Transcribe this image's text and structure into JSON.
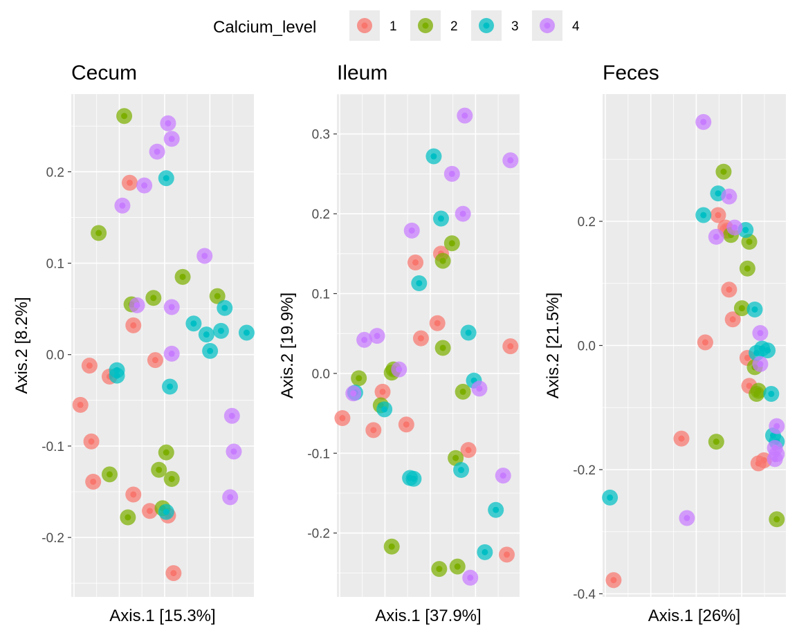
{
  "legend": {
    "title": "Calcium_level",
    "entries": [
      {
        "label": "1",
        "color": "#F8766D"
      },
      {
        "label": "2",
        "color": "#7CAE00"
      },
      {
        "label": "3",
        "color": "#00BFC4"
      },
      {
        "label": "4",
        "color": "#C77CFF"
      }
    ]
  },
  "chart_data": [
    {
      "type": "scatter",
      "title": "Cecum",
      "xlabel": "Axis.1   [15.3%]",
      "ylabel": "Axis.2   [8.2%]",
      "xlim": [
        0,
        1
      ],
      "ylim": [
        -0.265,
        0.285
      ],
      "yticks": [
        0.2,
        0.1,
        0.0,
        -0.1,
        -0.2
      ],
      "ytick_labels": [
        "0.2",
        "0.1",
        "0.0",
        "-0.1",
        "-0.2"
      ],
      "points": [
        {
          "x": 0.05,
          "y": -0.055,
          "g": 1
        },
        {
          "x": 0.1,
          "y": -0.012,
          "g": 1
        },
        {
          "x": 0.11,
          "y": -0.095,
          "g": 1
        },
        {
          "x": 0.12,
          "y": -0.139,
          "g": 1
        },
        {
          "x": 0.21,
          "y": -0.024,
          "g": 1
        },
        {
          "x": 0.32,
          "y": 0.188,
          "g": 1
        },
        {
          "x": 0.34,
          "y": 0.032,
          "g": 1
        },
        {
          "x": 0.34,
          "y": -0.153,
          "g": 1
        },
        {
          "x": 0.43,
          "y": -0.171,
          "g": 1
        },
        {
          "x": 0.46,
          "y": -0.006,
          "g": 1
        },
        {
          "x": 0.53,
          "y": -0.176,
          "g": 1
        },
        {
          "x": 0.56,
          "y": -0.239,
          "g": 1
        },
        {
          "x": 0.15,
          "y": 0.133,
          "g": 2
        },
        {
          "x": 0.21,
          "y": -0.131,
          "g": 2
        },
        {
          "x": 0.29,
          "y": 0.261,
          "g": 2
        },
        {
          "x": 0.31,
          "y": -0.178,
          "g": 2
        },
        {
          "x": 0.33,
          "y": 0.055,
          "g": 2
        },
        {
          "x": 0.45,
          "y": 0.062,
          "g": 2
        },
        {
          "x": 0.48,
          "y": -0.126,
          "g": 2
        },
        {
          "x": 0.5,
          "y": -0.168,
          "g": 2
        },
        {
          "x": 0.52,
          "y": -0.107,
          "g": 2
        },
        {
          "x": 0.55,
          "y": -0.136,
          "g": 2
        },
        {
          "x": 0.61,
          "y": 0.085,
          "g": 2
        },
        {
          "x": 0.8,
          "y": 0.064,
          "g": 2
        },
        {
          "x": 0.25,
          "y": -0.017,
          "g": 3
        },
        {
          "x": 0.25,
          "y": -0.023,
          "g": 3
        },
        {
          "x": 0.52,
          "y": 0.193,
          "g": 3
        },
        {
          "x": 0.52,
          "y": -0.172,
          "g": 3
        },
        {
          "x": 0.54,
          "y": -0.035,
          "g": 3
        },
        {
          "x": 0.67,
          "y": 0.034,
          "g": 3
        },
        {
          "x": 0.74,
          "y": 0.022,
          "g": 3
        },
        {
          "x": 0.76,
          "y": 0.004,
          "g": 3
        },
        {
          "x": 0.82,
          "y": 0.026,
          "g": 3
        },
        {
          "x": 0.84,
          "y": 0.051,
          "g": 3
        },
        {
          "x": 0.96,
          "y": 0.024,
          "g": 3
        },
        {
          "x": 0.28,
          "y": 0.163,
          "g": 4
        },
        {
          "x": 0.36,
          "y": 0.054,
          "g": 4
        },
        {
          "x": 0.4,
          "y": 0.185,
          "g": 4
        },
        {
          "x": 0.47,
          "y": 0.222,
          "g": 4
        },
        {
          "x": 0.53,
          "y": 0.253,
          "g": 4
        },
        {
          "x": 0.55,
          "y": 0.236,
          "g": 4
        },
        {
          "x": 0.55,
          "y": 0.052,
          "g": 4
        },
        {
          "x": 0.55,
          "y": 0.001,
          "g": 4
        },
        {
          "x": 0.73,
          "y": 0.108,
          "g": 4
        },
        {
          "x": 0.88,
          "y": -0.067,
          "g": 4
        },
        {
          "x": 0.89,
          "y": -0.106,
          "g": 4
        },
        {
          "x": 0.87,
          "y": -0.156,
          "g": 4
        }
      ]
    },
    {
      "type": "scatter",
      "title": "Ileum",
      "xlabel": "Axis.1   [37.9%]",
      "ylabel": "Axis.2   [19.9%]",
      "xlim": [
        0,
        1
      ],
      "ylim": [
        -0.28,
        0.35
      ],
      "yticks": [
        0.3,
        0.2,
        0.1,
        0.0,
        -0.1,
        -0.2
      ],
      "ytick_labels": [
        "0.3",
        "0.2",
        "0.1",
        "0.0",
        "-0.1",
        "-0.2"
      ],
      "points": [
        {
          "x": 0.03,
          "y": -0.056,
          "g": 1
        },
        {
          "x": 0.2,
          "y": -0.071,
          "g": 1
        },
        {
          "x": 0.25,
          "y": -0.023,
          "g": 1
        },
        {
          "x": 0.38,
          "y": -0.064,
          "g": 1
        },
        {
          "x": 0.43,
          "y": 0.139,
          "g": 1
        },
        {
          "x": 0.46,
          "y": 0.044,
          "g": 1
        },
        {
          "x": 0.55,
          "y": 0.063,
          "g": 1
        },
        {
          "x": 0.57,
          "y": 0.15,
          "g": 1
        },
        {
          "x": 0.72,
          "y": -0.096,
          "g": 1
        },
        {
          "x": 0.95,
          "y": 0.034,
          "g": 1
        },
        {
          "x": 0.93,
          "y": -0.227,
          "g": 1
        },
        {
          "x": 0.12,
          "y": -0.006,
          "g": 2
        },
        {
          "x": 0.24,
          "y": -0.04,
          "g": 2
        },
        {
          "x": 0.3,
          "y": 0.001,
          "g": 2
        },
        {
          "x": 0.31,
          "y": 0.005,
          "g": 2
        },
        {
          "x": 0.3,
          "y": -0.217,
          "g": 2
        },
        {
          "x": 0.56,
          "y": -0.245,
          "g": 2
        },
        {
          "x": 0.58,
          "y": 0.032,
          "g": 2
        },
        {
          "x": 0.58,
          "y": 0.141,
          "g": 2
        },
        {
          "x": 0.63,
          "y": 0.163,
          "g": 2
        },
        {
          "x": 0.65,
          "y": -0.106,
          "g": 2
        },
        {
          "x": 0.66,
          "y": -0.242,
          "g": 2
        },
        {
          "x": 0.69,
          "y": -0.023,
          "g": 2
        },
        {
          "x": 0.1,
          "y": -0.024,
          "g": 3
        },
        {
          "x": 0.26,
          "y": -0.045,
          "g": 3
        },
        {
          "x": 0.4,
          "y": -0.131,
          "g": 3
        },
        {
          "x": 0.42,
          "y": -0.132,
          "g": 3
        },
        {
          "x": 0.45,
          "y": 0.113,
          "g": 3
        },
        {
          "x": 0.53,
          "y": 0.272,
          "g": 3
        },
        {
          "x": 0.57,
          "y": 0.194,
          "g": 3
        },
        {
          "x": 0.68,
          "y": -0.121,
          "g": 3
        },
        {
          "x": 0.72,
          "y": 0.051,
          "g": 3
        },
        {
          "x": 0.75,
          "y": -0.009,
          "g": 3
        },
        {
          "x": 0.87,
          "y": -0.171,
          "g": 3
        },
        {
          "x": 0.81,
          "y": -0.224,
          "g": 3
        },
        {
          "x": 0.09,
          "y": -0.025,
          "g": 4
        },
        {
          "x": 0.15,
          "y": 0.042,
          "g": 4
        },
        {
          "x": 0.22,
          "y": 0.047,
          "g": 4
        },
        {
          "x": 0.34,
          "y": 0.005,
          "g": 4
        },
        {
          "x": 0.41,
          "y": 0.179,
          "g": 4
        },
        {
          "x": 0.63,
          "y": 0.25,
          "g": 4
        },
        {
          "x": 0.7,
          "y": 0.323,
          "g": 4
        },
        {
          "x": 0.69,
          "y": 0.2,
          "g": 4
        },
        {
          "x": 0.78,
          "y": -0.019,
          "g": 4
        },
        {
          "x": 0.73,
          "y": -0.256,
          "g": 4
        },
        {
          "x": 0.95,
          "y": 0.267,
          "g": 4
        },
        {
          "x": 0.91,
          "y": -0.128,
          "g": 4
        }
      ]
    },
    {
      "type": "scatter",
      "title": "Feces",
      "xlabel": "Axis.1   [26%]",
      "ylabel": "Axis.2   [21.5%]",
      "xlim": [
        0,
        1
      ],
      "ylim": [
        -0.405,
        0.405
      ],
      "yticks": [
        0.2,
        0.0,
        -0.2,
        -0.4
      ],
      "ytick_labels": [
        "0.2",
        "0.0",
        "-0.2",
        "-0.4"
      ],
      "points": [
        {
          "x": 0.06,
          "y": -0.378,
          "g": 1
        },
        {
          "x": 0.43,
          "y": -0.15,
          "g": 1
        },
        {
          "x": 0.56,
          "y": 0.005,
          "g": 1
        },
        {
          "x": 0.63,
          "y": 0.21,
          "g": 1
        },
        {
          "x": 0.67,
          "y": 0.19,
          "g": 1
        },
        {
          "x": 0.68,
          "y": 0.185,
          "g": 1
        },
        {
          "x": 0.69,
          "y": 0.09,
          "g": 1
        },
        {
          "x": 0.71,
          "y": 0.042,
          "g": 1
        },
        {
          "x": 0.79,
          "y": -0.02,
          "g": 1
        },
        {
          "x": 0.8,
          "y": -0.065,
          "g": 1
        },
        {
          "x": 0.85,
          "y": -0.19,
          "g": 1
        },
        {
          "x": 0.88,
          "y": -0.185,
          "g": 1
        },
        {
          "x": 0.62,
          "y": -0.155,
          "g": 2
        },
        {
          "x": 0.66,
          "y": 0.28,
          "g": 2
        },
        {
          "x": 0.7,
          "y": 0.178,
          "g": 2
        },
        {
          "x": 0.76,
          "y": 0.06,
          "g": 2
        },
        {
          "x": 0.79,
          "y": 0.124,
          "g": 2
        },
        {
          "x": 0.8,
          "y": 0.167,
          "g": 2
        },
        {
          "x": 0.83,
          "y": -0.035,
          "g": 2
        },
        {
          "x": 0.84,
          "y": -0.078,
          "g": 2
        },
        {
          "x": 0.85,
          "y": -0.073,
          "g": 2
        },
        {
          "x": 0.95,
          "y": -0.28,
          "g": 2
        },
        {
          "x": 0.04,
          "y": -0.245,
          "g": 3
        },
        {
          "x": 0.55,
          "y": 0.21,
          "g": 3
        },
        {
          "x": 0.63,
          "y": 0.245,
          "g": 3
        },
        {
          "x": 0.78,
          "y": 0.186,
          "g": 3
        },
        {
          "x": 0.83,
          "y": 0.058,
          "g": 3
        },
        {
          "x": 0.84,
          "y": -0.012,
          "g": 3
        },
        {
          "x": 0.87,
          "y": -0.005,
          "g": 3
        },
        {
          "x": 0.9,
          "y": -0.008,
          "g": 3
        },
        {
          "x": 0.92,
          "y": -0.078,
          "g": 3
        },
        {
          "x": 0.93,
          "y": -0.145,
          "g": 3
        },
        {
          "x": 0.95,
          "y": -0.155,
          "g": 3
        },
        {
          "x": 0.46,
          "y": -0.278,
          "g": 4
        },
        {
          "x": 0.55,
          "y": 0.36,
          "g": 4
        },
        {
          "x": 0.62,
          "y": 0.175,
          "g": 4
        },
        {
          "x": 0.69,
          "y": 0.24,
          "g": 4
        },
        {
          "x": 0.72,
          "y": 0.19,
          "g": 4
        },
        {
          "x": 0.86,
          "y": 0.02,
          "g": 4
        },
        {
          "x": 0.86,
          "y": -0.03,
          "g": 4
        },
        {
          "x": 0.95,
          "y": -0.13,
          "g": 4
        },
        {
          "x": 0.94,
          "y": -0.165,
          "g": 4
        },
        {
          "x": 0.95,
          "y": -0.175,
          "g": 4
        },
        {
          "x": 0.94,
          "y": -0.183,
          "g": 4
        }
      ]
    }
  ]
}
